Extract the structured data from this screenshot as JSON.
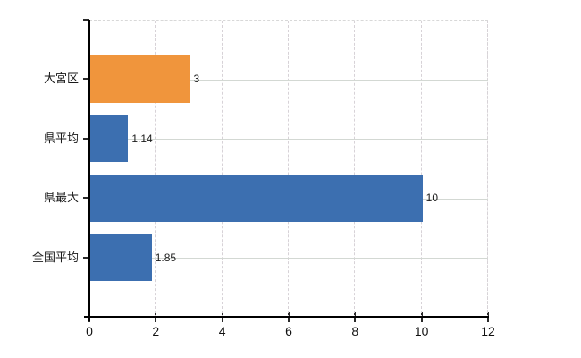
{
  "chart": {
    "background": "#ffffff",
    "axis_color": "#000000",
    "grid_color_h": "#d3d8d3",
    "grid_color_v": "#d7d2d7",
    "text_color": "#1a1a1a"
  },
  "chart_data": {
    "type": "bar",
    "orientation": "horizontal",
    "title": "",
    "xlabel": "",
    "ylabel": "",
    "categories": [
      "大宮区",
      "県平均",
      "県最大",
      "全国平均"
    ],
    "values": [
      3,
      1.14,
      10,
      1.85
    ],
    "value_labels": [
      "3",
      "1.14",
      "10",
      "1.85"
    ],
    "bar_colors": [
      "#f0953c",
      "#3c6fb0",
      "#3c6fb0",
      "#3c6fb0"
    ],
    "xlim": [
      0,
      12
    ],
    "xticks": [
      0,
      2,
      4,
      6,
      8,
      10,
      12
    ],
    "grid": true,
    "legend": false
  }
}
